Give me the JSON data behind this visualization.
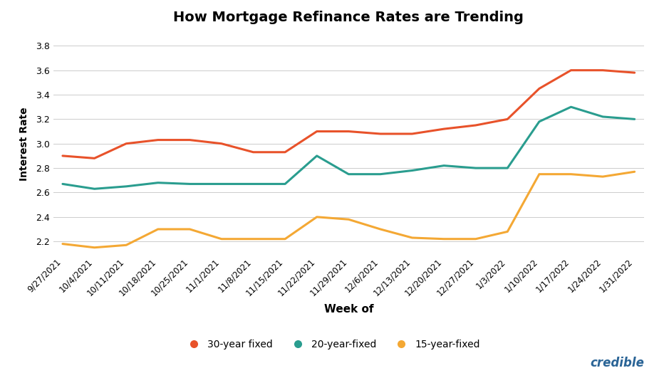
{
  "title": "How Mortgage Refinance Rates are Trending",
  "xlabel": "Week of",
  "ylabel": "Interest Rate",
  "xlabels": [
    "9/27/2021",
    "10/4/2021",
    "10/11/2021",
    "10/18/2021",
    "10/25/2021",
    "11/1/2021",
    "11/8/2021",
    "11/15/2021",
    "11/22/2021",
    "11/29/2021",
    "12/6/2021",
    "12/13/2021",
    "12/20/2021",
    "12/27/2021",
    "1/3/2022",
    "1/10/2022",
    "1/17/2022",
    "1/24/2022",
    "1/31/2022"
  ],
  "y30": [
    2.9,
    2.88,
    3.0,
    3.03,
    3.03,
    3.0,
    2.93,
    2.93,
    3.1,
    3.1,
    3.08,
    3.08,
    3.12,
    3.15,
    3.2,
    3.45,
    3.6,
    3.6,
    3.58
  ],
  "y20": [
    2.67,
    2.63,
    2.65,
    2.68,
    2.67,
    2.67,
    2.67,
    2.67,
    2.9,
    2.75,
    2.75,
    2.78,
    2.82,
    2.8,
    2.8,
    3.18,
    3.3,
    3.22,
    3.2
  ],
  "y15": [
    2.18,
    2.15,
    2.17,
    2.3,
    2.3,
    2.22,
    2.22,
    2.22,
    2.4,
    2.38,
    2.3,
    2.23,
    2.22,
    2.22,
    2.28,
    2.75,
    2.75,
    2.73,
    2.77
  ],
  "color30": "#e8522a",
  "color20": "#2a9d8f",
  "color15": "#f4a834",
  "ylim": [
    2.1,
    3.9
  ],
  "yticks": [
    2.2,
    2.4,
    2.6,
    2.8,
    3.0,
    3.2,
    3.4,
    3.6,
    3.8
  ],
  "legend_labels": [
    "30-year fixed",
    "20-year-fixed",
    "15-year-fixed"
  ],
  "background_color": "#ffffff",
  "grid_color": "#cccccc",
  "credible_color": "#2a6496",
  "linewidth": 2.2
}
